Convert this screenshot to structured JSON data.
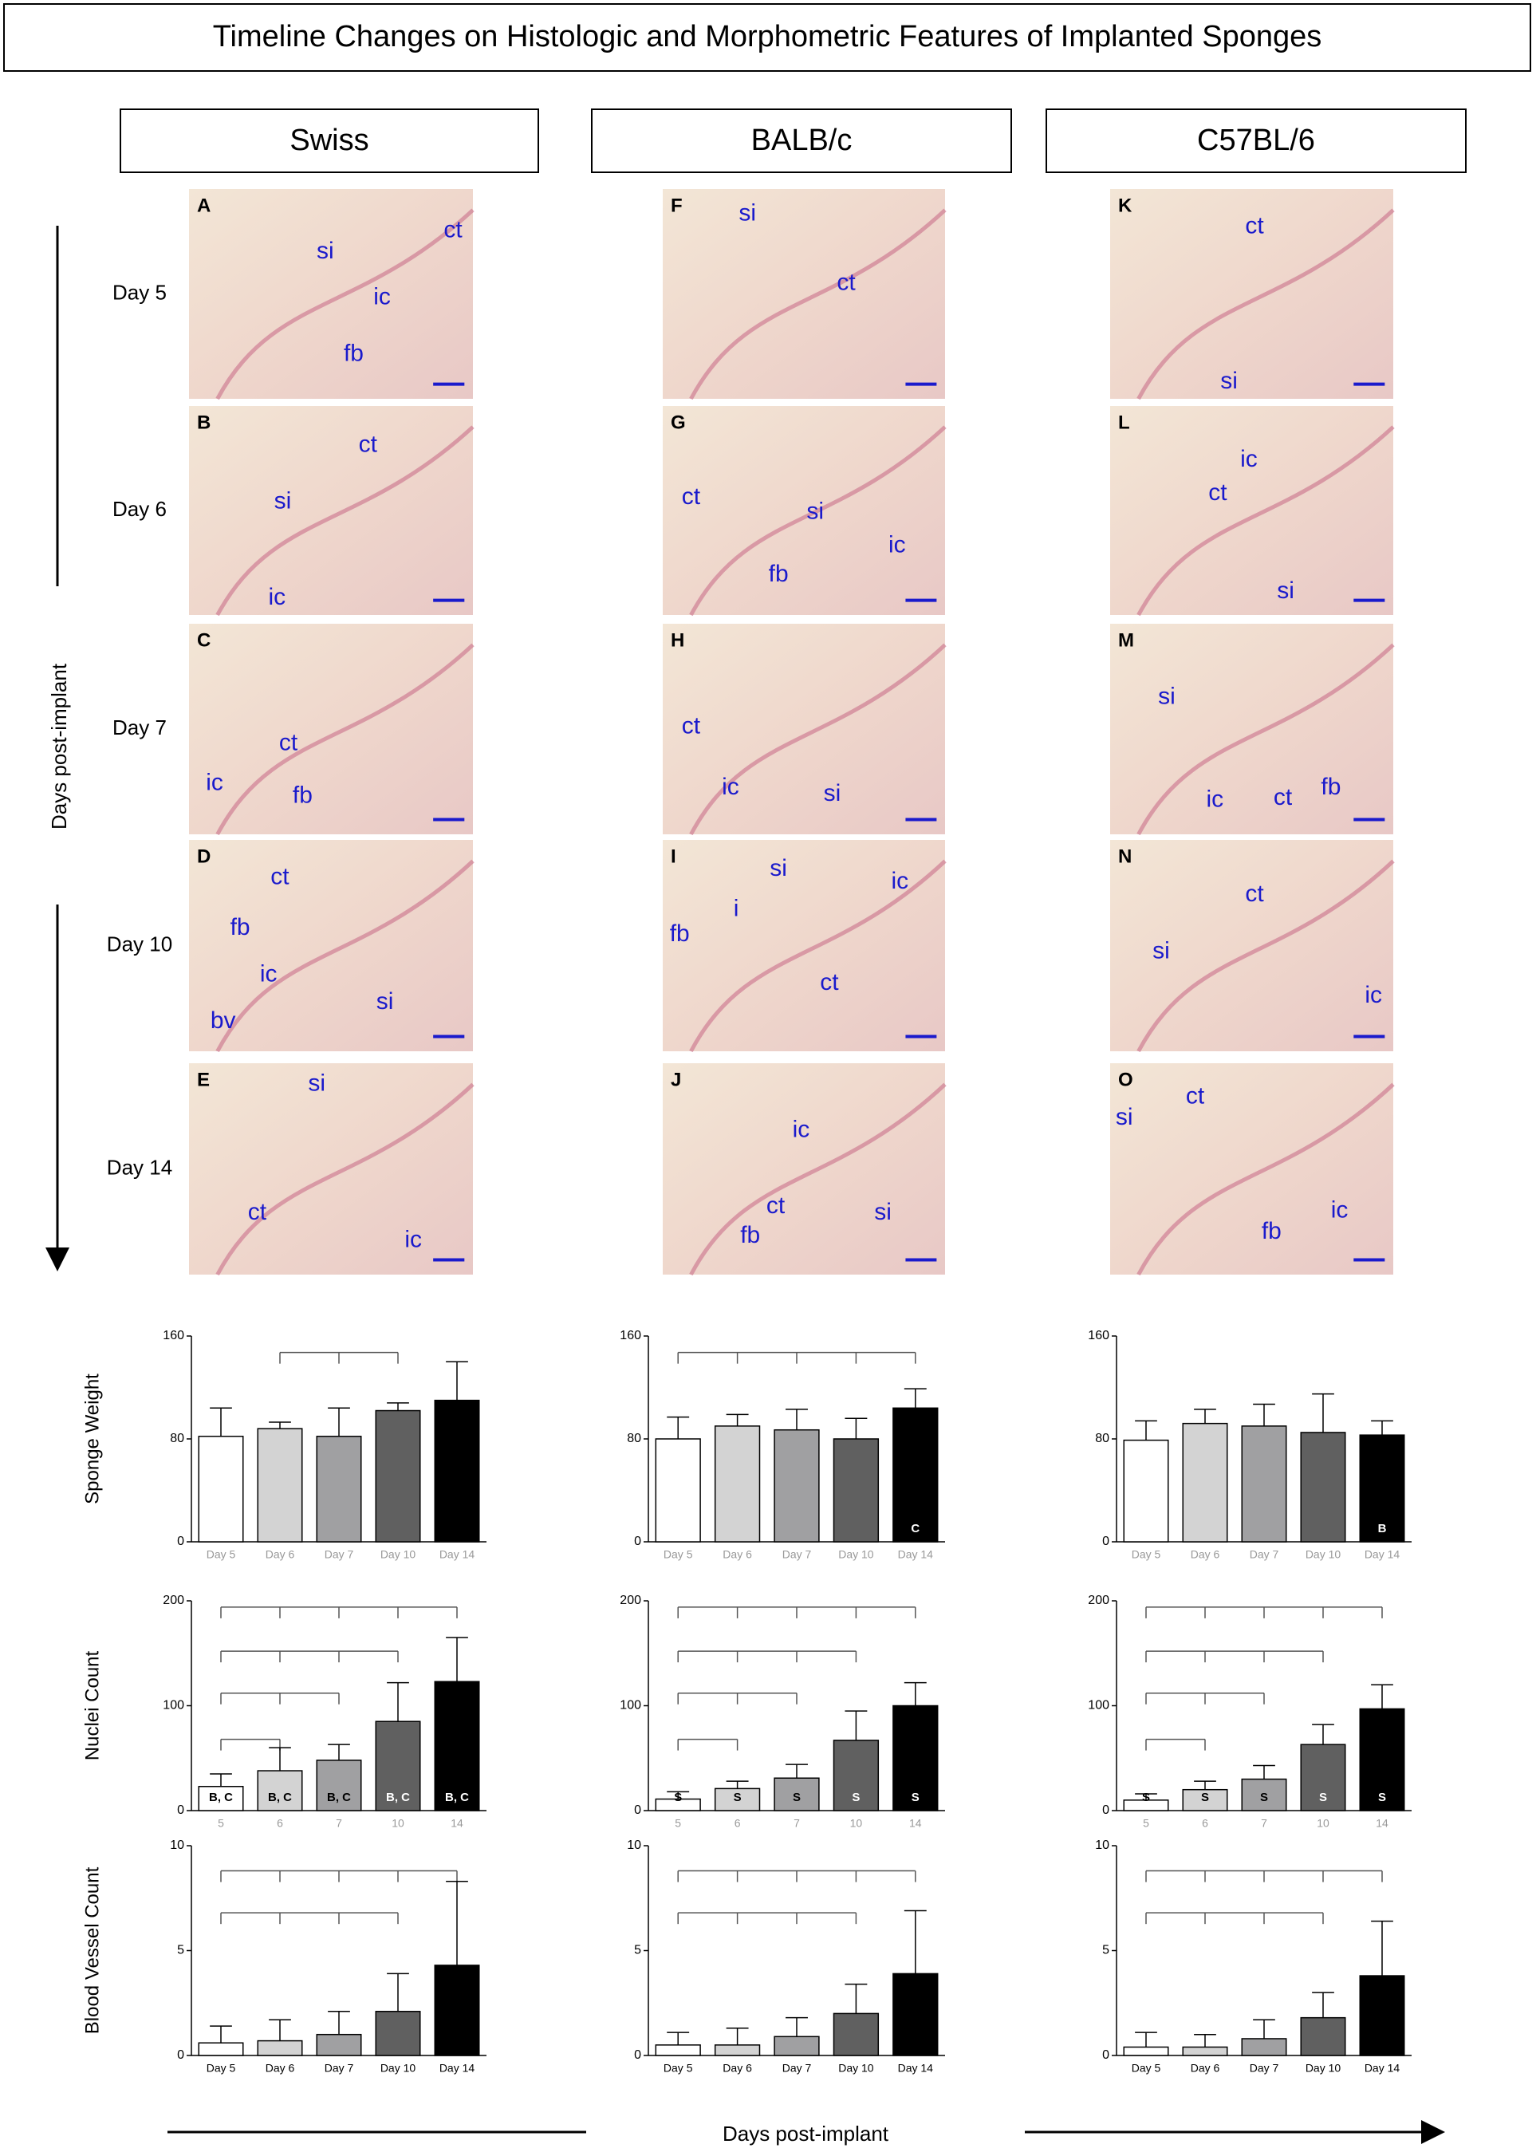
{
  "title": "Timeline Changes on Histologic and Morphometric Features of Implanted Sponges",
  "columns": [
    "Swiss",
    "BALB/c",
    "C57BL/6"
  ],
  "days": [
    "Day 5",
    "Day 6",
    "Day 7",
    "Day 10",
    "Day 14"
  ],
  "axis_label": "Days post-implant",
  "panels": [
    {
      "letter": "A",
      "labels": [
        "si",
        "ct",
        "ic",
        "fb"
      ]
    },
    {
      "letter": "B",
      "labels": [
        "ct",
        "si",
        "ic"
      ]
    },
    {
      "letter": "C",
      "labels": [
        "ct",
        "ic",
        "fb"
      ]
    },
    {
      "letter": "D",
      "labels": [
        "ct",
        "fb",
        "ic",
        "bv",
        "si"
      ]
    },
    {
      "letter": "E",
      "labels": [
        "si",
        "ct",
        "ic"
      ]
    },
    {
      "letter": "F",
      "labels": [
        "si",
        "ct"
      ]
    },
    {
      "letter": "G",
      "labels": [
        "ct",
        "si",
        "fb",
        "ic"
      ]
    },
    {
      "letter": "H",
      "labels": [
        "ct",
        "ic",
        "si"
      ]
    },
    {
      "letter": "I",
      "labels": [
        "si",
        "ic",
        "i",
        "fb",
        "ct"
      ]
    },
    {
      "letter": "J",
      "labels": [
        "ic",
        "ct",
        "fb",
        "si"
      ]
    },
    {
      "letter": "K",
      "labels": [
        "ct",
        "si"
      ]
    },
    {
      "letter": "L",
      "labels": [
        "ic",
        "ct",
        "si"
      ]
    },
    {
      "letter": "M",
      "labels": [
        "si",
        "fb",
        "ct",
        "ic"
      ]
    },
    {
      "letter": "N",
      "labels": [
        "ct",
        "si",
        "ic"
      ]
    },
    {
      "letter": "O",
      "labels": [
        "ct",
        "si",
        "fb",
        "ic"
      ]
    }
  ],
  "chart_data": [
    {
      "type": "bar",
      "ylabel": "Sponge Weight",
      "categories": [
        "Day 5",
        "Day 6",
        "Day 7",
        "Day 10",
        "Day 14"
      ],
      "values": [
        82,
        88,
        82,
        102,
        110
      ],
      "errors": [
        22,
        5,
        22,
        6,
        30
      ],
      "annotations": [
        null,
        null,
        null,
        null,
        null
      ],
      "colors": [
        "#ffffff",
        "#d3d3d3",
        "#a0a0a2",
        "#606060",
        "#000000"
      ],
      "ylim": [
        0,
        160
      ],
      "yticks": [
        0,
        80,
        160
      ]
    },
    {
      "type": "bar",
      "ylabel": "Nuclei Count",
      "categories": [
        "5",
        "6",
        "7",
        "10",
        "14"
      ],
      "values": [
        23,
        38,
        48,
        85,
        123
      ],
      "errors": [
        12,
        22,
        15,
        37,
        42
      ],
      "annotations": [
        "B, C",
        "B, C",
        "B, C",
        "B, C",
        "B, C"
      ],
      "colors": [
        "#ffffff",
        "#d3d3d3",
        "#a0a0a2",
        "#606060",
        "#000000"
      ],
      "ylim": [
        0,
        200
      ],
      "yticks": [
        0,
        100,
        200
      ]
    },
    {
      "type": "bar",
      "ylabel": "Blood Vessel Count",
      "categories": [
        "Day 5",
        "Day 6",
        "Day 7",
        "Day 10",
        "Day 14"
      ],
      "values": [
        0.6,
        0.7,
        1.0,
        2.1,
        4.3
      ],
      "errors": [
        0.8,
        1.0,
        1.1,
        1.8,
        4.0
      ],
      "annotations": [
        null,
        null,
        null,
        null,
        null
      ],
      "colors": [
        "#ffffff",
        "#d3d3d3",
        "#a0a0a2",
        "#606060",
        "#000000"
      ],
      "ylim": [
        0,
        10
      ],
      "yticks": [
        0,
        5,
        10
      ]
    },
    {
      "type": "bar",
      "categories": [
        "Day 5",
        "Day 6",
        "Day 7",
        "Day 10",
        "Day 14"
      ],
      "values": [
        80,
        90,
        87,
        80,
        104
      ],
      "errors": [
        17,
        9,
        16,
        16,
        15
      ],
      "annotations": [
        null,
        null,
        null,
        null,
        "C"
      ],
      "colors": [
        "#ffffff",
        "#d3d3d3",
        "#a0a0a2",
        "#606060",
        "#000000"
      ],
      "ylim": [
        0,
        160
      ],
      "yticks": [
        0,
        80,
        160
      ]
    },
    {
      "type": "bar",
      "categories": [
        "5",
        "6",
        "7",
        "10",
        "14"
      ],
      "values": [
        11,
        21,
        31,
        67,
        100
      ],
      "errors": [
        7,
        7,
        13,
        28,
        22
      ],
      "annotations": [
        "S",
        "S",
        "S",
        "S",
        "S"
      ],
      "colors": [
        "#ffffff",
        "#d3d3d3",
        "#a0a0a2",
        "#606060",
        "#000000"
      ],
      "ylim": [
        0,
        200
      ],
      "yticks": [
        0,
        100,
        200
      ]
    },
    {
      "type": "bar",
      "categories": [
        "Day 5",
        "Day 6",
        "Day 7",
        "Day 10",
        "Day 14"
      ],
      "values": [
        0.5,
        0.5,
        0.9,
        2.0,
        3.9
      ],
      "errors": [
        0.6,
        0.8,
        0.9,
        1.4,
        3.0
      ],
      "annotations": [
        null,
        null,
        null,
        null,
        null
      ],
      "colors": [
        "#ffffff",
        "#d3d3d3",
        "#a0a0a2",
        "#606060",
        "#000000"
      ],
      "ylim": [
        0,
        10
      ],
      "yticks": [
        0,
        5,
        10
      ]
    },
    {
      "type": "bar",
      "categories": [
        "Day 5",
        "Day 6",
        "Day 7",
        "Day 10",
        "Day 14"
      ],
      "values": [
        79,
        92,
        90,
        85,
        83
      ],
      "errors": [
        15,
        11,
        17,
        30,
        11
      ],
      "annotations": [
        null,
        null,
        null,
        null,
        "B"
      ],
      "colors": [
        "#ffffff",
        "#d3d3d3",
        "#a0a0a2",
        "#606060",
        "#000000"
      ],
      "ylim": [
        0,
        160
      ],
      "yticks": [
        0,
        80,
        160
      ]
    },
    {
      "type": "bar",
      "categories": [
        "5",
        "6",
        "7",
        "10",
        "14"
      ],
      "values": [
        10,
        20,
        30,
        63,
        97
      ],
      "errors": [
        6,
        8,
        13,
        19,
        23
      ],
      "annotations": [
        "S",
        "S",
        "S",
        "S",
        "S"
      ],
      "colors": [
        "#ffffff",
        "#d3d3d3",
        "#a0a0a2",
        "#606060",
        "#000000"
      ],
      "ylim": [
        0,
        200
      ],
      "yticks": [
        0,
        100,
        200
      ]
    },
    {
      "type": "bar",
      "categories": [
        "Day 5",
        "Day 6",
        "Day 7",
        "Day 10",
        "Day 14"
      ],
      "values": [
        0.4,
        0.4,
        0.8,
        1.8,
        3.8
      ],
      "errors": [
        0.7,
        0.6,
        0.9,
        1.2,
        2.6
      ],
      "annotations": [
        null,
        null,
        null,
        null,
        null
      ],
      "colors": [
        "#ffffff",
        "#d3d3d3",
        "#a0a0a2",
        "#606060",
        "#000000"
      ],
      "ylim": [
        0,
        10
      ],
      "yticks": [
        0,
        5,
        10
      ]
    }
  ]
}
